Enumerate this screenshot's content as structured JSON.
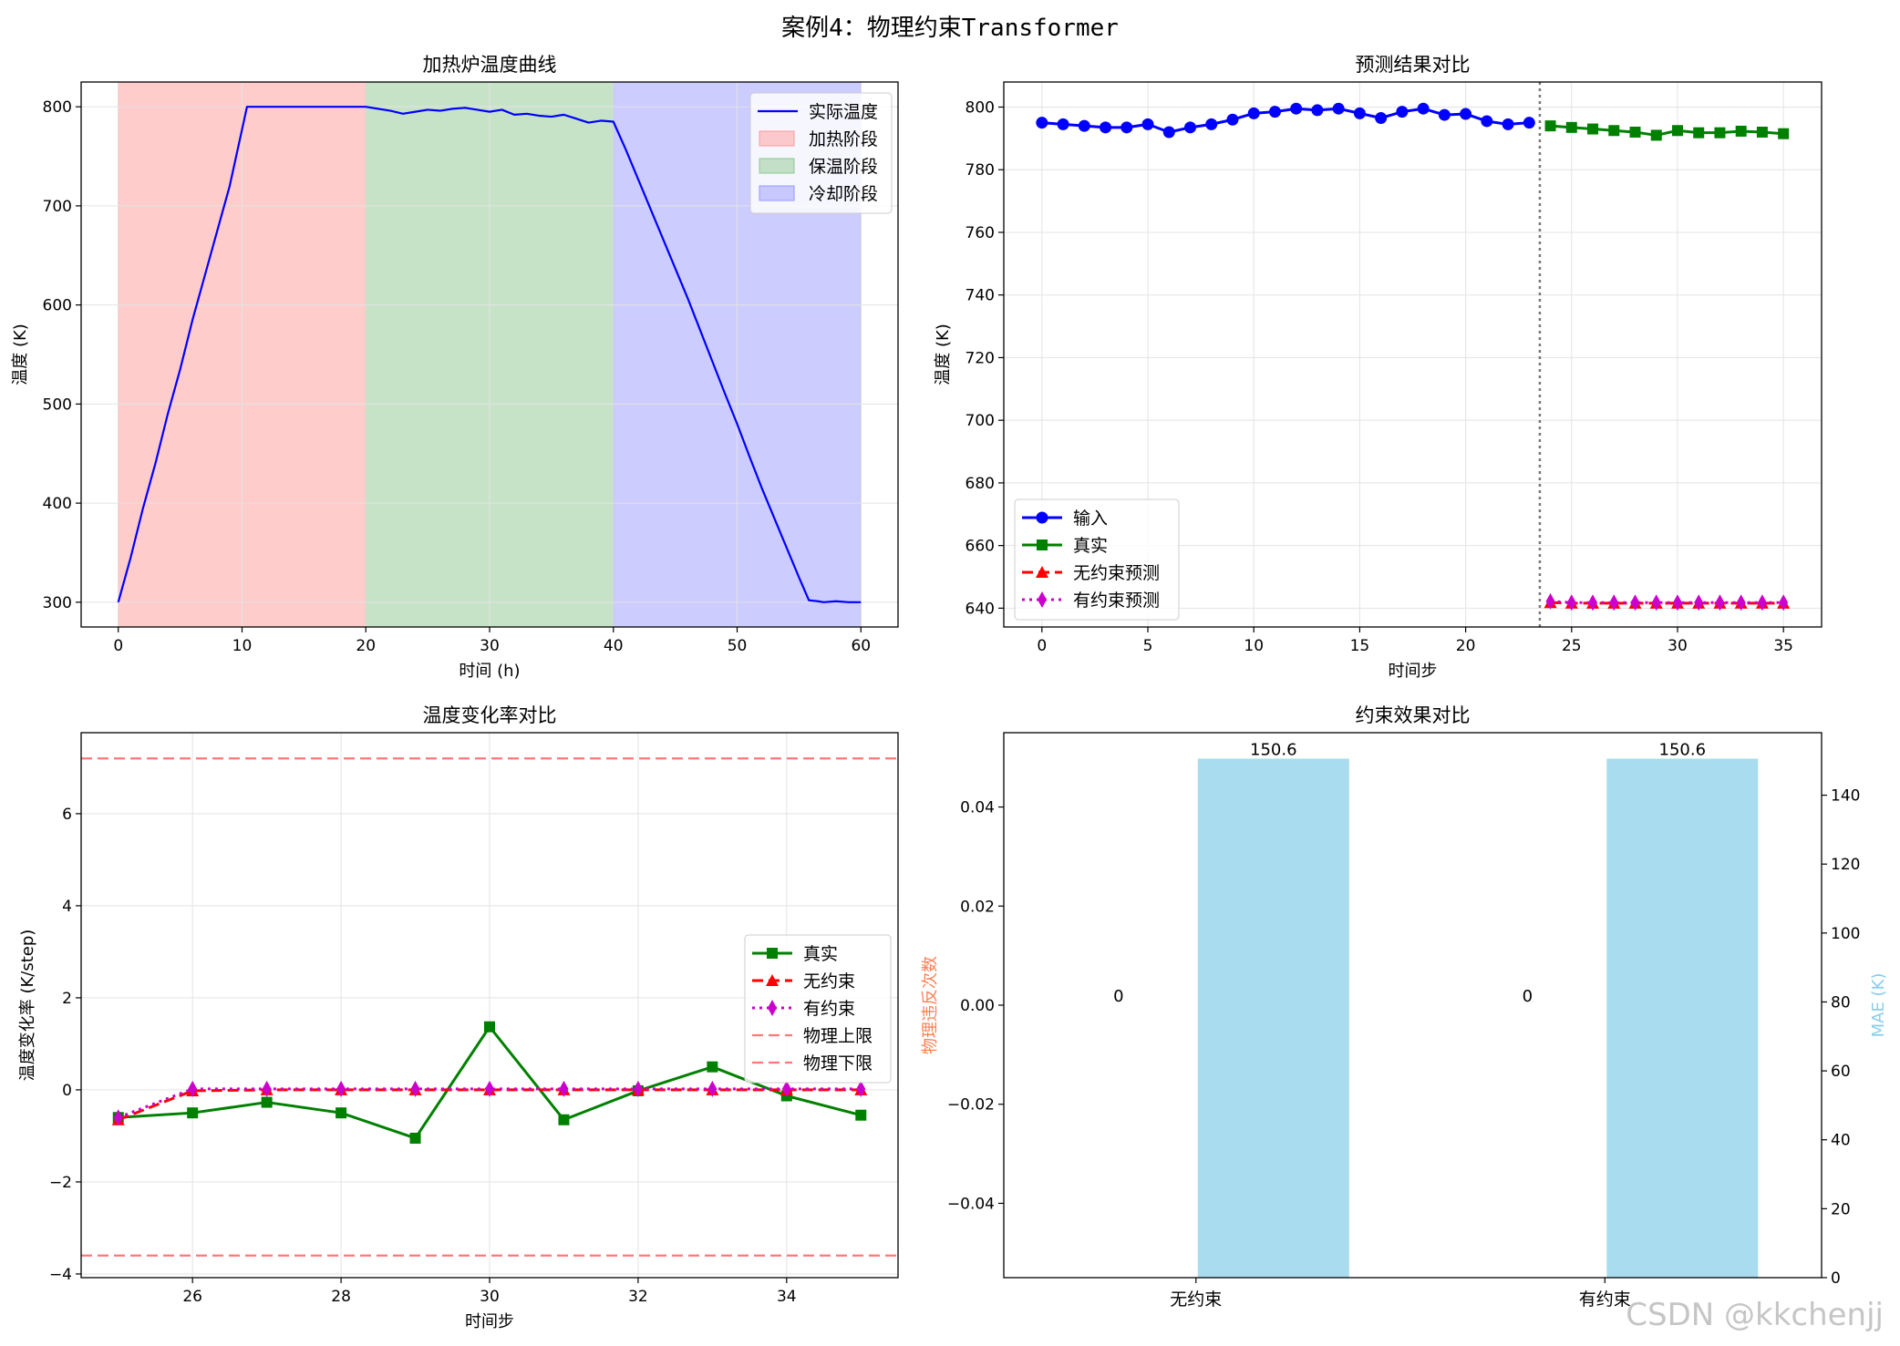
{
  "figure": {
    "suptitle": "案例4：物理约束Transformer",
    "watermark": "CSDN @kkchenjj"
  },
  "chart_data": [
    {
      "type": "line",
      "title": "加热炉温度曲线",
      "xlabel": "时间 (h)",
      "ylabel": "温度 (K)",
      "xlim": [
        -3,
        63
      ],
      "ylim": [
        275,
        825
      ],
      "xticks": [
        0,
        10,
        20,
        30,
        40,
        50,
        60
      ],
      "yticks": [
        300,
        400,
        500,
        600,
        700,
        800
      ],
      "grid": true,
      "legend_position": "top-right",
      "spans": [
        {
          "name": "加热阶段",
          "x0": 0,
          "x1": 20,
          "color": "#ff9999"
        },
        {
          "name": "保温阶段",
          "x0": 20,
          "x1": 40,
          "color": "#90c890"
        },
        {
          "name": "冷却阶段",
          "x0": 40,
          "x1": 60,
          "color": "#9999ff"
        }
      ],
      "series": [
        {
          "name": "实际温度",
          "color": "#0000ff",
          "x": [
            0,
            1,
            2,
            3,
            4,
            5,
            6,
            7,
            8,
            9,
            10.4,
            12,
            14,
            16,
            18,
            20,
            21,
            22,
            23,
            24,
            25,
            26,
            27,
            28,
            29,
            30,
            31,
            32,
            33,
            34,
            35,
            36,
            37,
            38,
            39,
            40,
            41,
            42,
            43,
            44,
            45,
            46,
            47,
            48,
            49,
            50,
            51,
            52,
            53,
            54,
            55,
            55.8,
            56.5,
            57,
            58,
            59,
            60
          ],
          "y": [
            300,
            345,
            395,
            440,
            490,
            535,
            585,
            630,
            675,
            720,
            800,
            800,
            800,
            800,
            800,
            800,
            798,
            796,
            793,
            795,
            797,
            796,
            798,
            799,
            797,
            795,
            797,
            792,
            793,
            791,
            790,
            792,
            788,
            784,
            786,
            785,
            757,
            727,
            697,
            667,
            637,
            607,
            575,
            543,
            511,
            480,
            447,
            415,
            385,
            355,
            325,
            302,
            301,
            300,
            301,
            300,
            300
          ]
        }
      ]
    },
    {
      "type": "line",
      "title": "预测结果对比",
      "xlabel": "时间步",
      "ylabel": "温度 (K)",
      "xlim": [
        -1.8,
        36.8
      ],
      "ylim": [
        634,
        808
      ],
      "xticks": [
        0,
        5,
        10,
        15,
        20,
        25,
        30,
        35
      ],
      "yticks": [
        640,
        660,
        680,
        700,
        720,
        740,
        760,
        780,
        800
      ],
      "grid": true,
      "legend_position": "bottom-left",
      "divider_x": 23.5,
      "series": [
        {
          "name": "输入",
          "color": "#0000ff",
          "marker": "circle",
          "style": "solid",
          "x": [
            0,
            1,
            2,
            3,
            4,
            5,
            6,
            7,
            8,
            9,
            10,
            11,
            12,
            13,
            14,
            15,
            16,
            17,
            18,
            19,
            20,
            21,
            22,
            23
          ],
          "y": [
            795,
            794.5,
            794,
            793.5,
            793.5,
            794.5,
            792,
            793.5,
            794.5,
            796,
            798,
            798.5,
            799.5,
            799,
            799.5,
            798,
            796.5,
            798.5,
            799.5,
            797.5,
            797.8,
            795.5,
            794.5,
            795
          ]
        },
        {
          "name": "真实",
          "color": "#008000",
          "marker": "square",
          "style": "solid",
          "x": [
            24,
            25,
            26,
            27,
            28,
            29,
            30,
            31,
            32,
            33,
            34,
            35
          ],
          "y": [
            794,
            793.5,
            793,
            792.5,
            792,
            791,
            792.5,
            791.8,
            791.8,
            792.3,
            792,
            791.5
          ]
        },
        {
          "name": "无约束预测",
          "color": "#ff0000",
          "marker": "triangle",
          "style": "dashed",
          "x": [
            24,
            25,
            26,
            27,
            28,
            29,
            30,
            31,
            32,
            33,
            34,
            35
          ],
          "y": [
            641.8,
            641.6,
            641.6,
            641.6,
            641.6,
            641.6,
            641.6,
            641.6,
            641.6,
            641.6,
            641.6,
            641.6
          ]
        },
        {
          "name": "有约束预测",
          "color": "#cc00cc",
          "marker": "diamond",
          "style": "dotted",
          "x": [
            24,
            25,
            26,
            27,
            28,
            29,
            30,
            31,
            32,
            33,
            34,
            35
          ],
          "y": [
            642.2,
            641.8,
            641.8,
            641.8,
            641.8,
            641.8,
            641.8,
            641.8,
            641.8,
            641.8,
            641.8,
            641.8
          ]
        }
      ]
    },
    {
      "type": "line",
      "title": "温度变化率对比",
      "xlabel": "时间步",
      "ylabel": "温度变化率 (K/step)",
      "xlim": [
        24.5,
        35.5
      ],
      "ylim": [
        -4.08,
        7.76
      ],
      "xticks": [
        26,
        28,
        30,
        32,
        34
      ],
      "yticks": [
        -4,
        -2,
        0,
        2,
        4,
        6
      ],
      "grid": true,
      "legend_position": "center-right",
      "hlines": [
        {
          "name": "物理上限",
          "y": 7.2,
          "color": "#ff7777"
        },
        {
          "name": "物理下限",
          "y": -3.6,
          "color": "#ff7777"
        }
      ],
      "series": [
        {
          "name": "真实",
          "color": "#008000",
          "marker": "square",
          "style": "solid",
          "x": [
            25,
            26,
            27,
            28,
            29,
            30,
            31,
            32,
            33,
            34,
            35
          ],
          "y": [
            -0.6,
            -0.5,
            -0.27,
            -0.5,
            -1.05,
            1.37,
            -0.65,
            -0.02,
            0.5,
            -0.13,
            -0.55
          ]
        },
        {
          "name": "无约束",
          "color": "#ff0000",
          "marker": "triangle",
          "style": "dashed",
          "x": [
            25,
            26,
            27,
            28,
            29,
            30,
            31,
            32,
            33,
            34,
            35
          ],
          "y": [
            -0.65,
            -0.02,
            0,
            0,
            0,
            0,
            0,
            0,
            0,
            0,
            0
          ]
        },
        {
          "name": "有约束",
          "color": "#cc00cc",
          "marker": "diamond",
          "style": "dotted",
          "x": [
            25,
            26,
            27,
            28,
            29,
            30,
            31,
            32,
            33,
            34,
            35
          ],
          "y": [
            -0.6,
            0.02,
            0.02,
            0.02,
            0.02,
            0.02,
            0.02,
            0.02,
            0.02,
            0.02,
            0.02
          ]
        }
      ]
    },
    {
      "type": "bar",
      "title": "约束效果对比",
      "categories": [
        "无约束",
        "有约束"
      ],
      "left_axis": {
        "ylabel": "物理违反次数",
        "color": "#ff7f50",
        "ylim": [
          -0.055,
          0.055
        ],
        "yticks": [
          -0.04,
          -0.02,
          0.0,
          0.02,
          0.04
        ],
        "yticklabels": [
          "−0.04",
          "−0.02",
          "0.00",
          "0.02",
          "0.04"
        ]
      },
      "right_axis": {
        "ylabel": "MAE (K)",
        "color": "#87ceeb",
        "ylim": [
          0,
          158.13
        ],
        "yticks": [
          0,
          20,
          40,
          60,
          80,
          100,
          120,
          140
        ]
      },
      "series": [
        {
          "name": "物理违反次数",
          "axis": "left",
          "color": "#ff7f50",
          "values": [
            0,
            0
          ],
          "labels": [
            "0",
            "0"
          ]
        },
        {
          "name": "MAE (K)",
          "axis": "right",
          "color": "#a8dcee",
          "values": [
            150.6,
            150.6
          ],
          "labels": [
            "150.6",
            "150.6"
          ]
        }
      ]
    }
  ]
}
